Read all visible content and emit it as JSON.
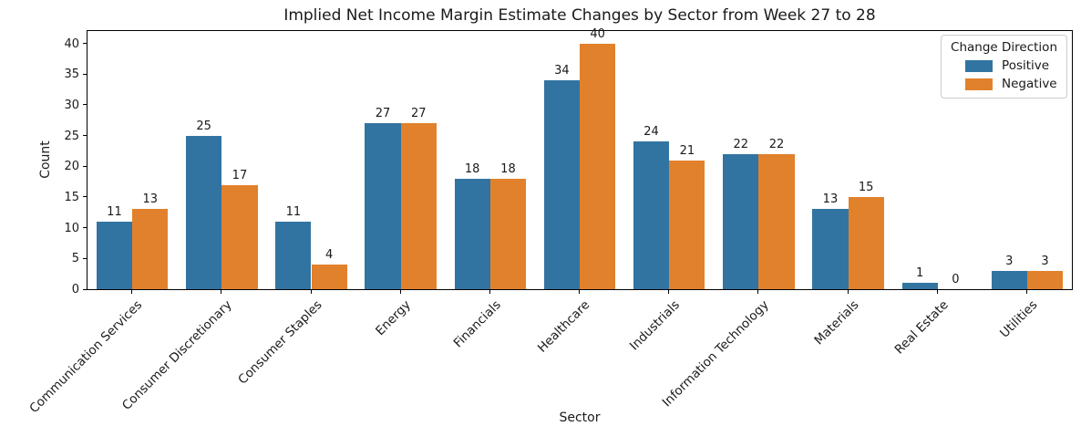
{
  "chart_data": {
    "type": "bar",
    "title": "Implied Net Income Margin Estimate Changes by Sector from Week 27 to 28",
    "xlabel": "Sector",
    "ylabel": "Count",
    "categories": [
      "Communication Services",
      "Consumer Discretionary",
      "Consumer Staples",
      "Energy",
      "Financials",
      "Healthcare",
      "Industrials",
      "Information Technology",
      "Materials",
      "Real Estate",
      "Utilities"
    ],
    "series": [
      {
        "name": "Positive",
        "color": "#3274a1",
        "values": [
          11,
          25,
          11,
          27,
          18,
          34,
          24,
          22,
          13,
          1,
          3
        ]
      },
      {
        "name": "Negative",
        "color": "#e1812c",
        "values": [
          13,
          17,
          4,
          27,
          18,
          40,
          21,
          22,
          15,
          0,
          3
        ]
      }
    ],
    "ylim": [
      0,
      42
    ],
    "yticks": [
      0,
      5,
      10,
      15,
      20,
      25,
      30,
      35,
      40
    ],
    "legend_title": "Change Direction",
    "legend_position": "upper right",
    "grid": false,
    "bar_labels": true
  }
}
